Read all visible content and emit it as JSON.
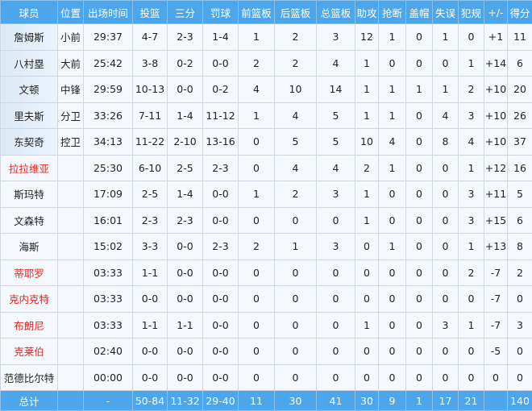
{
  "headers": [
    "球员",
    "位置",
    "出场时间",
    "投篮",
    "三分",
    "罚球",
    "前篮板",
    "后篮板",
    "总篮板",
    "助攻",
    "抢断",
    "盖帽",
    "失误",
    "犯规",
    "+/-",
    "得分"
  ],
  "colors": {
    "header": "#4ea6ea",
    "highlight_name": "#e8231f",
    "cell": "#f5f9fd"
  },
  "rows": [
    {
      "name": "詹姆斯",
      "starter": true,
      "red": false,
      "cells": [
        "小前",
        "29:37",
        "4-7",
        "2-3",
        "1-4",
        "1",
        "2",
        "3",
        "12",
        "1",
        "0",
        "1",
        "0",
        "+1",
        "11"
      ]
    },
    {
      "name": "八村塁",
      "starter": true,
      "red": false,
      "cells": [
        "大前",
        "25:42",
        "3-8",
        "0-2",
        "0-0",
        "2",
        "2",
        "4",
        "1",
        "0",
        "0",
        "0",
        "1",
        "+14",
        "6"
      ]
    },
    {
      "name": "文顿",
      "starter": true,
      "red": false,
      "cells": [
        "中锋",
        "29:59",
        "10-13",
        "0-0",
        "0-2",
        "4",
        "10",
        "14",
        "1",
        "1",
        "1",
        "1",
        "2",
        "+10",
        "20"
      ]
    },
    {
      "name": "里夫斯",
      "starter": true,
      "red": false,
      "cells": [
        "分卫",
        "33:26",
        "7-11",
        "1-4",
        "11-12",
        "1",
        "4",
        "5",
        "1",
        "1",
        "0",
        "4",
        "3",
        "+10",
        "26"
      ]
    },
    {
      "name": "东契奇",
      "starter": true,
      "red": false,
      "cells": [
        "控卫",
        "34:13",
        "11-22",
        "2-10",
        "13-16",
        "0",
        "5",
        "5",
        "10",
        "4",
        "0",
        "8",
        "4",
        "+10",
        "37"
      ]
    },
    {
      "name": "拉拉维亚",
      "starter": false,
      "red": true,
      "cells": [
        "",
        "25:30",
        "6-10",
        "2-5",
        "2-3",
        "0",
        "4",
        "4",
        "2",
        "1",
        "0",
        "0",
        "1",
        "+12",
        "16"
      ]
    },
    {
      "name": "斯玛特",
      "starter": false,
      "red": false,
      "cells": [
        "",
        "17:09",
        "2-5",
        "1-4",
        "0-0",
        "1",
        "2",
        "3",
        "1",
        "0",
        "0",
        "0",
        "3",
        "+11",
        "5"
      ]
    },
    {
      "name": "文森特",
      "starter": false,
      "red": false,
      "cells": [
        "",
        "16:01",
        "2-3",
        "2-3",
        "0-0",
        "0",
        "0",
        "0",
        "1",
        "0",
        "0",
        "0",
        "3",
        "+15",
        "6"
      ]
    },
    {
      "name": "海斯",
      "starter": false,
      "red": false,
      "cells": [
        "",
        "15:02",
        "3-3",
        "0-0",
        "2-3",
        "2",
        "1",
        "3",
        "0",
        "1",
        "0",
        "0",
        "1",
        "+13",
        "8"
      ]
    },
    {
      "name": "蒂耶罗",
      "starter": false,
      "red": true,
      "cells": [
        "",
        "03:33",
        "1-1",
        "0-0",
        "0-0",
        "0",
        "0",
        "0",
        "0",
        "0",
        "0",
        "0",
        "2",
        "-7",
        "2"
      ]
    },
    {
      "name": "克内克特",
      "starter": false,
      "red": true,
      "cells": [
        "",
        "03:33",
        "0-0",
        "0-0",
        "0-0",
        "0",
        "0",
        "0",
        "0",
        "0",
        "0",
        "0",
        "0",
        "-7",
        "0"
      ]
    },
    {
      "name": "布朗尼",
      "starter": false,
      "red": true,
      "cells": [
        "",
        "03:33",
        "1-1",
        "1-1",
        "0-0",
        "0",
        "0",
        "0",
        "1",
        "0",
        "0",
        "3",
        "1",
        "-7",
        "3"
      ]
    },
    {
      "name": "克莱伯",
      "starter": false,
      "red": true,
      "cells": [
        "",
        "02:40",
        "0-0",
        "0-0",
        "0-0",
        "0",
        "0",
        "0",
        "0",
        "0",
        "0",
        "0",
        "0",
        "-5",
        "0"
      ]
    },
    {
      "name": "范德比尔特",
      "starter": false,
      "red": false,
      "cells": [
        "",
        "00:00",
        "0-0",
        "0-0",
        "0-0",
        "0",
        "0",
        "0",
        "0",
        "0",
        "0",
        "0",
        "0",
        "0",
        "0"
      ]
    }
  ],
  "total": {
    "name": "总计",
    "cells": [
      "",
      "-",
      "50-84",
      "11-32",
      "29-40",
      "11",
      "30",
      "41",
      "30",
      "9",
      "1",
      "17",
      "21",
      "",
      "140"
    ]
  }
}
